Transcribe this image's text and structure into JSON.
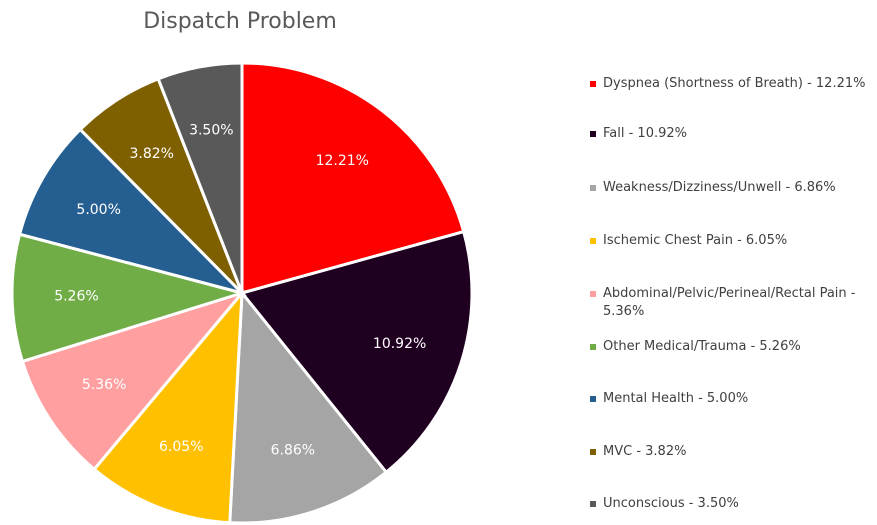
{
  "chart_data": {
    "type": "pie",
    "title": "Dispatch Problem",
    "categories": [
      "Dyspnea (Shortness of Breath) - 12.21%",
      "Fall - 10.92%",
      "Weakness/Dizziness/Unwell - 6.86%",
      "Ischemic Chest Pain - 6.05%",
      "Abdominal/Pelvic/Perineal/Rectal Pain - 5.36%",
      "Other Medical/Trauma - 5.26%",
      "Mental Health - 5.00%",
      "MVC - 3.82%",
      "Unconscious - 3.50%"
    ],
    "values": [
      12.21,
      10.92,
      6.86,
      6.05,
      5.36,
      5.26,
      5.0,
      3.82,
      3.5
    ],
    "value_labels": [
      "12.21%",
      "10.92%",
      "6.86%",
      "6.05%",
      "5.36%",
      "5.26%",
      "5.00%",
      "3.82%",
      "3.50%"
    ],
    "colors": [
      "#ff0000",
      "#200020",
      "#a5a5a5",
      "#ffc000",
      "#ff9f9f",
      "#70ad47",
      "#255e91",
      "#7f6000",
      "#595959"
    ],
    "legend": "right"
  }
}
